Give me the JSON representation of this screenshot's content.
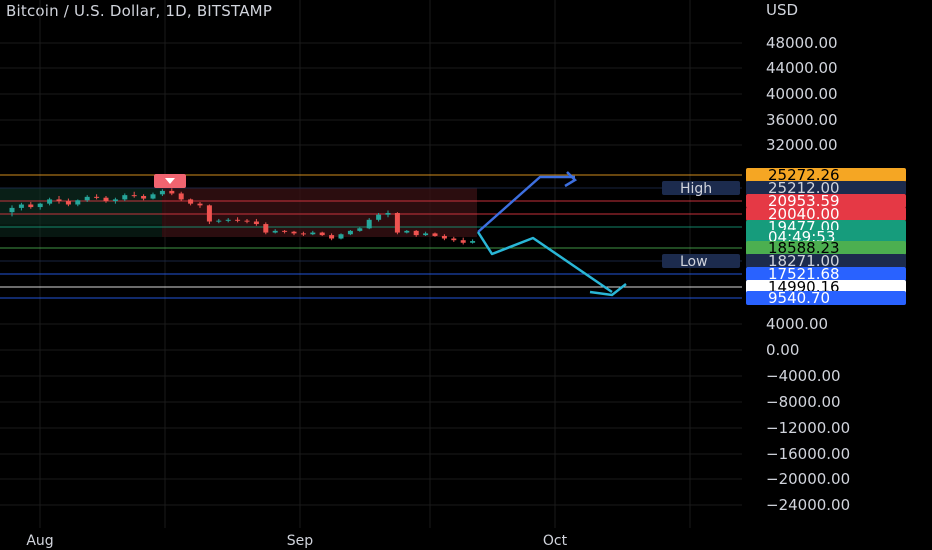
{
  "title": "Bitcoin / U.S. Dollar, 1D, BITSTAMP",
  "currency_label": "USD",
  "colors": {
    "background": "#000000",
    "up": "#26a69a",
    "down": "#ef5350",
    "grid": "#1a1a1a",
    "text": "#d1d4dc",
    "arrow_up": "#3d6fe0",
    "arrow_down": "#29b6d6",
    "band_red": "#3a1114",
    "band_green": "#0f3326"
  },
  "sell_marker_icon": "down-arrow-icon",
  "chart_data": {
    "type": "candlestick",
    "title": "Bitcoin / U.S. Dollar, 1D, BITSTAMP",
    "ylabel": "USD",
    "y_ticks": [
      "48000.00",
      "44000.00",
      "40000.00",
      "36000.00",
      "32000.00",
      "4000.00",
      "0.00",
      "−4000.00",
      "−8000.00",
      "−12000.00",
      "−16000.00",
      "−20000.00",
      "−24000.00"
    ],
    "x_ticks": [
      "Aug",
      "Sep",
      "Oct"
    ],
    "series": [
      {
        "candles": [
          [
            22400,
            23200,
            21900,
            22900
          ],
          [
            22900,
            23500,
            22600,
            23300
          ],
          [
            23300,
            23600,
            22800,
            23000
          ],
          [
            23000,
            23500,
            22700,
            23400
          ],
          [
            23400,
            24100,
            23200,
            23900
          ],
          [
            23900,
            24300,
            23400,
            23700
          ],
          [
            23700,
            24000,
            23100,
            23300
          ],
          [
            23300,
            23900,
            23100,
            23800
          ],
          [
            23800,
            24400,
            23600,
            24200
          ],
          [
            24200,
            24500,
            23900,
            24100
          ],
          [
            24100,
            24300,
            23500,
            23700
          ],
          [
            23700,
            24100,
            23400,
            23900
          ],
          [
            23900,
            24600,
            23700,
            24400
          ],
          [
            24400,
            24800,
            24100,
            24300
          ],
          [
            24300,
            24500,
            23800,
            24000
          ],
          [
            24000,
            24700,
            23900,
            24500
          ],
          [
            24500,
            25100,
            24300,
            24900
          ],
          [
            24900,
            25200,
            24400,
            24600
          ],
          [
            24600,
            24800,
            23700,
            23900
          ],
          [
            23900,
            24000,
            23200,
            23400
          ],
          [
            23400,
            23600,
            22900,
            23200
          ],
          [
            23200,
            23300,
            21000,
            21300
          ],
          [
            21300,
            21600,
            21100,
            21400
          ],
          [
            21400,
            21700,
            21200,
            21500
          ],
          [
            21500,
            21800,
            21200,
            21400
          ],
          [
            21400,
            21600,
            21100,
            21300
          ],
          [
            21300,
            21600,
            20800,
            21000
          ],
          [
            21000,
            21200,
            19800,
            20000
          ],
          [
            20000,
            20400,
            19900,
            20200
          ],
          [
            20200,
            20300,
            19900,
            20100
          ],
          [
            20100,
            20200,
            19700,
            19900
          ],
          [
            19900,
            20100,
            19600,
            19800
          ],
          [
            19800,
            20200,
            19700,
            20000
          ],
          [
            20000,
            20100,
            19600,
            19700
          ],
          [
            19700,
            19900,
            19100,
            19300
          ],
          [
            19300,
            19900,
            19200,
            19800
          ],
          [
            19800,
            20300,
            19700,
            20200
          ],
          [
            20200,
            20600,
            20100,
            20500
          ],
          [
            20500,
            21700,
            20400,
            21500
          ],
          [
            21500,
            22300,
            21300,
            22100
          ],
          [
            22100,
            22600,
            21800,
            22300
          ],
          [
            22300,
            22400,
            19800,
            20000
          ],
          [
            20000,
            20300,
            19900,
            20200
          ],
          [
            20200,
            20300,
            19500,
            19700
          ],
          [
            19700,
            20100,
            19600,
            19900
          ],
          [
            19900,
            20000,
            19500,
            19600
          ],
          [
            19600,
            19800,
            19100,
            19300
          ],
          [
            19300,
            19500,
            18900,
            19100
          ],
          [
            19100,
            19400,
            18600,
            18800
          ],
          [
            18800,
            19200,
            18700,
            19000
          ]
        ]
      }
    ],
    "horizontal_levels": [
      {
        "value": "25272.26",
        "color": "#f5a623",
        "text_color": "#000000"
      },
      {
        "value": "25212.00",
        "color": "#1c2b4d",
        "text_color": "#d1d4dc",
        "line_label": "High"
      },
      {
        "value": "20953.59",
        "color": "#e53945",
        "text_color": "#ffffff"
      },
      {
        "value": "20040.00",
        "color": "#e53945",
        "text_color": "#ffffff"
      },
      {
        "value": "19477.00",
        "color": "#169c7c",
        "text_color": "#ffffff"
      },
      {
        "value": "04:49:53",
        "color": "#169c7c",
        "text_color": "#ffffff"
      },
      {
        "value": "18588.23",
        "color": "#4caf50",
        "text_color": "#000000"
      },
      {
        "value": "18271.00",
        "color": "#1c2b4d",
        "text_color": "#d1d4dc",
        "line_label": "Low"
      },
      {
        "value": "17521.68",
        "color": "#2962ff",
        "text_color": "#ffffff"
      },
      {
        "value": "14990.16",
        "color": "#ffffff",
        "text_color": "#000000"
      },
      {
        "value": "9540.70",
        "color": "#2962ff",
        "text_color": "#ffffff"
      }
    ]
  }
}
